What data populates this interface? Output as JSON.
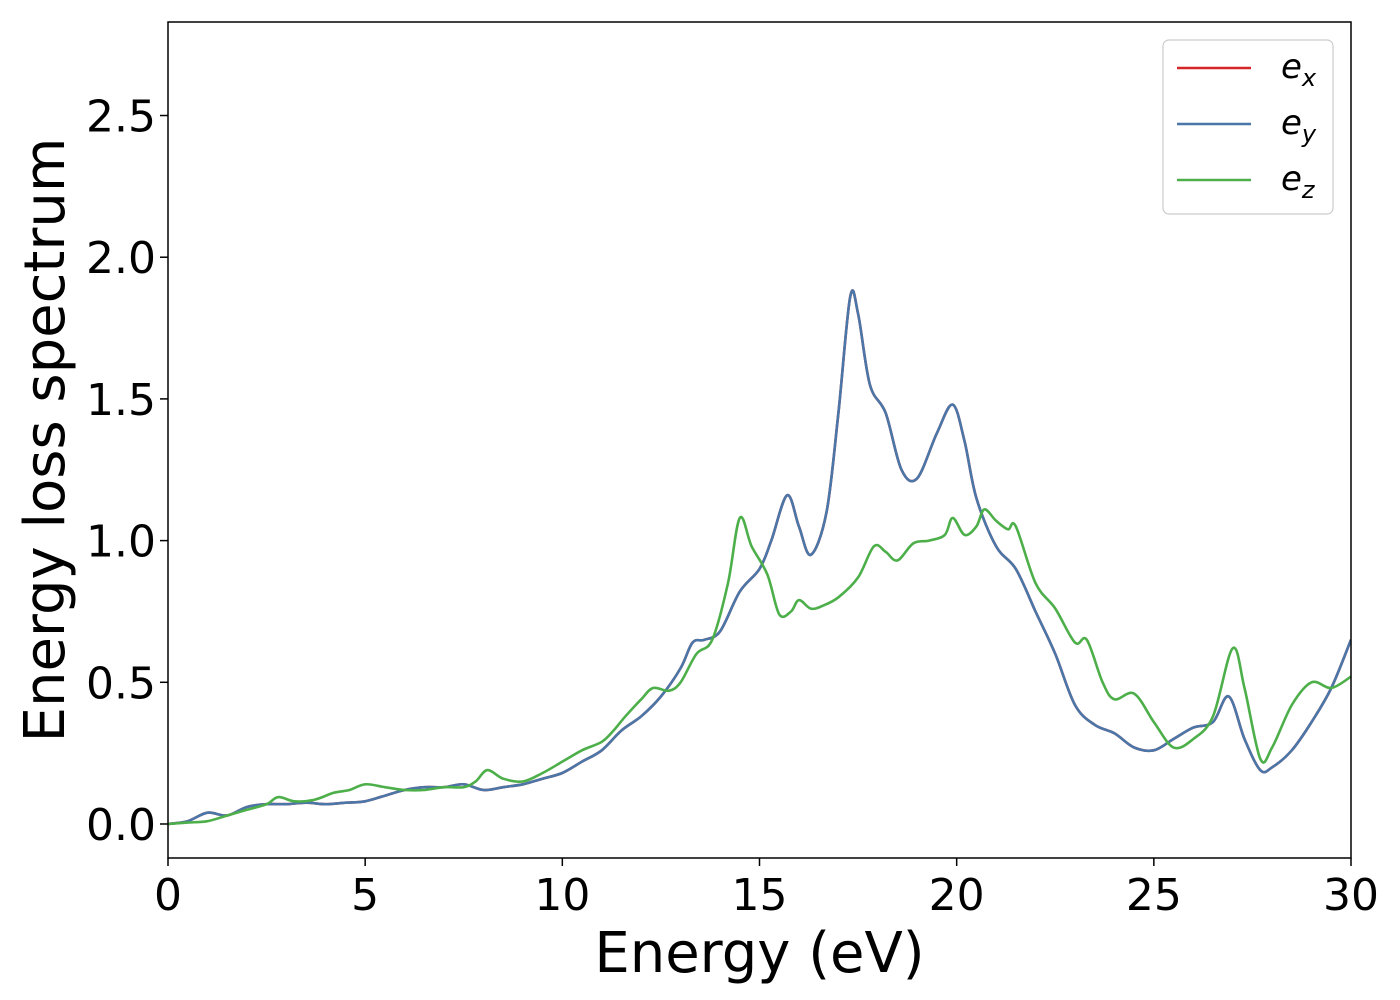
{
  "chart_data": {
    "type": "line",
    "title": "",
    "xlabel": "Energy (eV)",
    "ylabel": "Energy loss spectrum",
    "xlim": [
      0,
      30
    ],
    "ylim": [
      -0.12,
      2.83
    ],
    "xticks": [
      0,
      5,
      10,
      15,
      20,
      25,
      30
    ],
    "xtick_labels": [
      "0",
      "5",
      "10",
      "15",
      "20",
      "25",
      "30"
    ],
    "yticks": [
      0.0,
      0.5,
      1.0,
      1.5,
      2.0,
      2.5
    ],
    "ytick_labels": [
      "0.0",
      "0.5",
      "1.0",
      "1.5",
      "2.0",
      "2.5"
    ],
    "grid": false,
    "legend_position": "top-right",
    "series": [
      {
        "name": "e_x",
        "label_base": "e",
        "label_sub": "x",
        "color": "#d62728",
        "points": [
          [
            0,
            0.0
          ],
          [
            0.5,
            0.01
          ],
          [
            1.0,
            0.04
          ],
          [
            1.5,
            0.03
          ],
          [
            2.0,
            0.06
          ],
          [
            2.5,
            0.07
          ],
          [
            3.0,
            0.07
          ],
          [
            3.5,
            0.075
          ],
          [
            4.0,
            0.07
          ],
          [
            4.5,
            0.075
          ],
          [
            5.0,
            0.08
          ],
          [
            5.5,
            0.1
          ],
          [
            6.0,
            0.12
          ],
          [
            6.5,
            0.13
          ],
          [
            7.0,
            0.13
          ],
          [
            7.5,
            0.14
          ],
          [
            8.0,
            0.12
          ],
          [
            8.5,
            0.13
          ],
          [
            9.0,
            0.14
          ],
          [
            9.5,
            0.16
          ],
          [
            10.0,
            0.18
          ],
          [
            10.5,
            0.22
          ],
          [
            11.0,
            0.26
          ],
          [
            11.5,
            0.33
          ],
          [
            12.0,
            0.38
          ],
          [
            12.5,
            0.45
          ],
          [
            13.0,
            0.55
          ],
          [
            13.3,
            0.64
          ],
          [
            13.6,
            0.65
          ],
          [
            14.0,
            0.68
          ],
          [
            14.5,
            0.82
          ],
          [
            15.0,
            0.9
          ],
          [
            15.3,
            1.0
          ],
          [
            15.7,
            1.16
          ],
          [
            16.0,
            1.05
          ],
          [
            16.3,
            0.95
          ],
          [
            16.7,
            1.1
          ],
          [
            17.0,
            1.45
          ],
          [
            17.3,
            1.86
          ],
          [
            17.5,
            1.8
          ],
          [
            17.8,
            1.55
          ],
          [
            18.2,
            1.45
          ],
          [
            18.6,
            1.25
          ],
          [
            19.0,
            1.22
          ],
          [
            19.5,
            1.38
          ],
          [
            19.9,
            1.48
          ],
          [
            20.2,
            1.35
          ],
          [
            20.5,
            1.15
          ],
          [
            21.0,
            0.98
          ],
          [
            21.5,
            0.9
          ],
          [
            22.0,
            0.75
          ],
          [
            22.5,
            0.6
          ],
          [
            23.0,
            0.42
          ],
          [
            23.5,
            0.35
          ],
          [
            24.0,
            0.32
          ],
          [
            24.5,
            0.27
          ],
          [
            25.0,
            0.26
          ],
          [
            25.5,
            0.3
          ],
          [
            26.0,
            0.34
          ],
          [
            26.5,
            0.36
          ],
          [
            26.9,
            0.45
          ],
          [
            27.3,
            0.3
          ],
          [
            27.7,
            0.19
          ],
          [
            28.0,
            0.2
          ],
          [
            28.5,
            0.26
          ],
          [
            29.0,
            0.36
          ],
          [
            29.5,
            0.48
          ],
          [
            30.0,
            0.65
          ]
        ]
      },
      {
        "name": "e_y",
        "label_base": "e",
        "label_sub": "y",
        "color": "#4a76a8",
        "points": [
          [
            0,
            0.0
          ],
          [
            0.5,
            0.01
          ],
          [
            1.0,
            0.04
          ],
          [
            1.5,
            0.03
          ],
          [
            2.0,
            0.06
          ],
          [
            2.5,
            0.07
          ],
          [
            3.0,
            0.07
          ],
          [
            3.5,
            0.075
          ],
          [
            4.0,
            0.07
          ],
          [
            4.5,
            0.075
          ],
          [
            5.0,
            0.08
          ],
          [
            5.5,
            0.1
          ],
          [
            6.0,
            0.12
          ],
          [
            6.5,
            0.13
          ],
          [
            7.0,
            0.13
          ],
          [
            7.5,
            0.14
          ],
          [
            8.0,
            0.12
          ],
          [
            8.5,
            0.13
          ],
          [
            9.0,
            0.14
          ],
          [
            9.5,
            0.16
          ],
          [
            10.0,
            0.18
          ],
          [
            10.5,
            0.22
          ],
          [
            11.0,
            0.26
          ],
          [
            11.5,
            0.33
          ],
          [
            12.0,
            0.38
          ],
          [
            12.5,
            0.45
          ],
          [
            13.0,
            0.55
          ],
          [
            13.3,
            0.64
          ],
          [
            13.6,
            0.65
          ],
          [
            14.0,
            0.68
          ],
          [
            14.5,
            0.82
          ],
          [
            15.0,
            0.9
          ],
          [
            15.3,
            1.0
          ],
          [
            15.7,
            1.16
          ],
          [
            16.0,
            1.05
          ],
          [
            16.3,
            0.95
          ],
          [
            16.7,
            1.1
          ],
          [
            17.0,
            1.45
          ],
          [
            17.3,
            1.86
          ],
          [
            17.5,
            1.8
          ],
          [
            17.8,
            1.55
          ],
          [
            18.2,
            1.45
          ],
          [
            18.6,
            1.25
          ],
          [
            19.0,
            1.22
          ],
          [
            19.5,
            1.38
          ],
          [
            19.9,
            1.48
          ],
          [
            20.2,
            1.35
          ],
          [
            20.5,
            1.15
          ],
          [
            21.0,
            0.98
          ],
          [
            21.5,
            0.9
          ],
          [
            22.0,
            0.75
          ],
          [
            22.5,
            0.6
          ],
          [
            23.0,
            0.42
          ],
          [
            23.5,
            0.35
          ],
          [
            24.0,
            0.32
          ],
          [
            24.5,
            0.27
          ],
          [
            25.0,
            0.26
          ],
          [
            25.5,
            0.3
          ],
          [
            26.0,
            0.34
          ],
          [
            26.5,
            0.36
          ],
          [
            26.9,
            0.45
          ],
          [
            27.3,
            0.3
          ],
          [
            27.7,
            0.19
          ],
          [
            28.0,
            0.2
          ],
          [
            28.5,
            0.26
          ],
          [
            29.0,
            0.36
          ],
          [
            29.5,
            0.48
          ],
          [
            30.0,
            0.65
          ]
        ]
      },
      {
        "name": "e_z",
        "label_base": "e",
        "label_sub": "z",
        "color": "#4daf4a",
        "points": [
          [
            0,
            0.0
          ],
          [
            0.5,
            0.005
          ],
          [
            1.0,
            0.01
          ],
          [
            1.5,
            0.03
          ],
          [
            2.0,
            0.05
          ],
          [
            2.5,
            0.07
          ],
          [
            2.8,
            0.095
          ],
          [
            3.2,
            0.08
          ],
          [
            3.7,
            0.085
          ],
          [
            4.2,
            0.11
          ],
          [
            4.6,
            0.12
          ],
          [
            5.0,
            0.14
          ],
          [
            5.5,
            0.13
          ],
          [
            6.0,
            0.12
          ],
          [
            6.5,
            0.12
          ],
          [
            7.0,
            0.13
          ],
          [
            7.5,
            0.13
          ],
          [
            7.8,
            0.15
          ],
          [
            8.1,
            0.19
          ],
          [
            8.5,
            0.16
          ],
          [
            9.0,
            0.15
          ],
          [
            9.5,
            0.18
          ],
          [
            10.0,
            0.22
          ],
          [
            10.5,
            0.26
          ],
          [
            11.0,
            0.29
          ],
          [
            11.3,
            0.33
          ],
          [
            11.6,
            0.38
          ],
          [
            12.0,
            0.44
          ],
          [
            12.3,
            0.48
          ],
          [
            12.7,
            0.47
          ],
          [
            13.0,
            0.5
          ],
          [
            13.4,
            0.6
          ],
          [
            13.8,
            0.65
          ],
          [
            14.2,
            0.85
          ],
          [
            14.5,
            1.08
          ],
          [
            14.8,
            0.98
          ],
          [
            15.2,
            0.88
          ],
          [
            15.5,
            0.74
          ],
          [
            15.8,
            0.75
          ],
          [
            16.0,
            0.79
          ],
          [
            16.3,
            0.76
          ],
          [
            16.6,
            0.77
          ],
          [
            17.0,
            0.8
          ],
          [
            17.5,
            0.87
          ],
          [
            17.9,
            0.98
          ],
          [
            18.2,
            0.96
          ],
          [
            18.5,
            0.93
          ],
          [
            18.9,
            0.99
          ],
          [
            19.3,
            1.0
          ],
          [
            19.7,
            1.02
          ],
          [
            19.9,
            1.08
          ],
          [
            20.2,
            1.02
          ],
          [
            20.5,
            1.05
          ],
          [
            20.7,
            1.11
          ],
          [
            21.0,
            1.07
          ],
          [
            21.3,
            1.04
          ],
          [
            21.5,
            1.05
          ],
          [
            22.0,
            0.85
          ],
          [
            22.5,
            0.76
          ],
          [
            23.0,
            0.64
          ],
          [
            23.3,
            0.65
          ],
          [
            23.7,
            0.5
          ],
          [
            24.0,
            0.44
          ],
          [
            24.5,
            0.46
          ],
          [
            25.0,
            0.36
          ],
          [
            25.5,
            0.27
          ],
          [
            26.0,
            0.3
          ],
          [
            26.5,
            0.38
          ],
          [
            27.0,
            0.62
          ],
          [
            27.3,
            0.48
          ],
          [
            27.7,
            0.23
          ],
          [
            28.0,
            0.27
          ],
          [
            28.5,
            0.42
          ],
          [
            29.0,
            0.5
          ],
          [
            29.5,
            0.48
          ],
          [
            30.0,
            0.52
          ]
        ]
      }
    ]
  }
}
